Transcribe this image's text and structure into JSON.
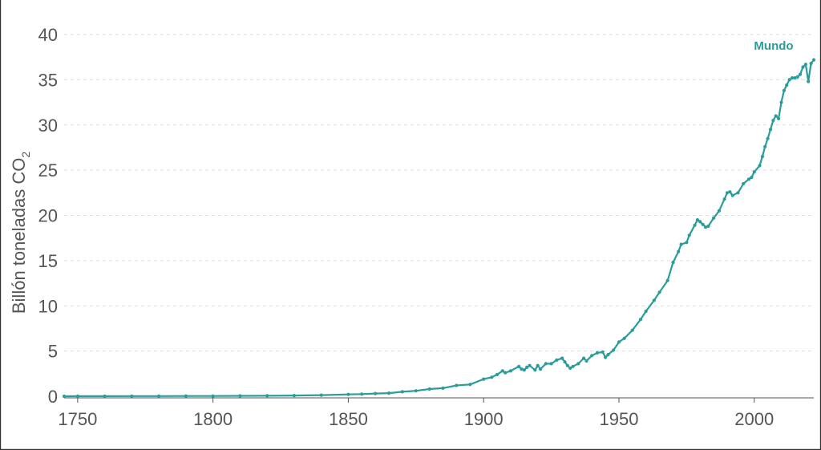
{
  "colors": {
    "series": "#2a9d9a",
    "grid": "#dddddd",
    "text": "#555555"
  },
  "chart_data": {
    "type": "line",
    "title": "",
    "xlabel": "",
    "ylabel": "Billón toneladas CO",
    "ylabel_subscript": "2",
    "xlim": [
      1745,
      2022
    ],
    "ylim": [
      0,
      40
    ],
    "x_ticks": [
      "1750",
      "1800",
      "1850",
      "1900",
      "1950",
      "2000"
    ],
    "y_ticks": [
      "0",
      "5",
      "10",
      "15",
      "20",
      "25",
      "30",
      "35",
      "40"
    ],
    "grid": true,
    "series": [
      {
        "name": "Mundo",
        "points": [
          [
            1745,
            0.0
          ],
          [
            1750,
            0.01
          ],
          [
            1760,
            0.01
          ],
          [
            1770,
            0.015
          ],
          [
            1780,
            0.02
          ],
          [
            1790,
            0.025
          ],
          [
            1800,
            0.03
          ],
          [
            1810,
            0.04
          ],
          [
            1820,
            0.05
          ],
          [
            1830,
            0.08
          ],
          [
            1840,
            0.12
          ],
          [
            1850,
            0.2
          ],
          [
            1855,
            0.24
          ],
          [
            1860,
            0.3
          ],
          [
            1865,
            0.35
          ],
          [
            1870,
            0.5
          ],
          [
            1875,
            0.6
          ],
          [
            1880,
            0.8
          ],
          [
            1885,
            0.9
          ],
          [
            1890,
            1.2
          ],
          [
            1895,
            1.3
          ],
          [
            1900,
            1.9
          ],
          [
            1903,
            2.1
          ],
          [
            1905,
            2.4
          ],
          [
            1907,
            2.8
          ],
          [
            1908,
            2.6
          ],
          [
            1910,
            2.8
          ],
          [
            1913,
            3.3
          ],
          [
            1914,
            3.0
          ],
          [
            1915,
            2.9
          ],
          [
            1916,
            3.2
          ],
          [
            1917,
            3.4
          ],
          [
            1919,
            2.9
          ],
          [
            1920,
            3.4
          ],
          [
            1921,
            3.0
          ],
          [
            1923,
            3.6
          ],
          [
            1925,
            3.6
          ],
          [
            1927,
            4.0
          ],
          [
            1929,
            4.2
          ],
          [
            1930,
            3.8
          ],
          [
            1931,
            3.4
          ],
          [
            1932,
            3.1
          ],
          [
            1933,
            3.3
          ],
          [
            1935,
            3.6
          ],
          [
            1937,
            4.2
          ],
          [
            1938,
            3.9
          ],
          [
            1940,
            4.5
          ],
          [
            1942,
            4.8
          ],
          [
            1944,
            4.9
          ],
          [
            1945,
            4.3
          ],
          [
            1946,
            4.6
          ],
          [
            1948,
            5.1
          ],
          [
            1950,
            6.0
          ],
          [
            1952,
            6.4
          ],
          [
            1955,
            7.3
          ],
          [
            1958,
            8.5
          ],
          [
            1960,
            9.4
          ],
          [
            1963,
            10.6
          ],
          [
            1965,
            11.5
          ],
          [
            1968,
            12.8
          ],
          [
            1970,
            14.8
          ],
          [
            1972,
            16.0
          ],
          [
            1973,
            16.8
          ],
          [
            1975,
            17.0
          ],
          [
            1976,
            17.8
          ],
          [
            1978,
            18.9
          ],
          [
            1979,
            19.5
          ],
          [
            1980,
            19.3
          ],
          [
            1981,
            19.0
          ],
          [
            1982,
            18.7
          ],
          [
            1983,
            18.8
          ],
          [
            1985,
            19.7
          ],
          [
            1987,
            20.5
          ],
          [
            1989,
            21.8
          ],
          [
            1990,
            22.5
          ],
          [
            1991,
            22.6
          ],
          [
            1992,
            22.2
          ],
          [
            1994,
            22.5
          ],
          [
            1996,
            23.5
          ],
          [
            1998,
            24.0
          ],
          [
            1999,
            24.2
          ],
          [
            2000,
            24.8
          ],
          [
            2002,
            25.5
          ],
          [
            2003,
            26.5
          ],
          [
            2004,
            27.6
          ],
          [
            2005,
            28.5
          ],
          [
            2006,
            29.5
          ],
          [
            2007,
            30.5
          ],
          [
            2008,
            31.0
          ],
          [
            2009,
            30.7
          ],
          [
            2010,
            32.5
          ],
          [
            2011,
            33.8
          ],
          [
            2012,
            34.4
          ],
          [
            2013,
            35.0
          ],
          [
            2014,
            35.2
          ],
          [
            2015,
            35.2
          ],
          [
            2016,
            35.3
          ],
          [
            2017,
            35.6
          ],
          [
            2018,
            36.4
          ],
          [
            2019,
            36.7
          ],
          [
            2020,
            34.8
          ],
          [
            2021,
            36.8
          ],
          [
            2022,
            37.2
          ]
        ]
      }
    ]
  }
}
